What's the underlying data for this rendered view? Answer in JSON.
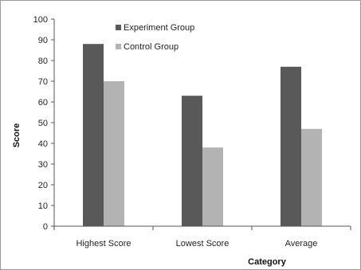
{
  "chart_data": {
    "type": "bar",
    "title": "",
    "xlabel": "Category",
    "ylabel": "Score",
    "ylim": [
      0,
      100
    ],
    "yticks": [
      0,
      10,
      20,
      30,
      40,
      50,
      60,
      70,
      80,
      90,
      100
    ],
    "categories": [
      "Highest Score",
      "Lowest Score",
      "Average"
    ],
    "series": [
      {
        "name": "Experiment Group",
        "color": "#595959",
        "values": [
          88,
          63,
          77
        ]
      },
      {
        "name": "Control Group",
        "color": "#b3b3b3",
        "values": [
          70,
          38,
          47
        ]
      }
    ],
    "legend": "top-left",
    "grid": false
  }
}
